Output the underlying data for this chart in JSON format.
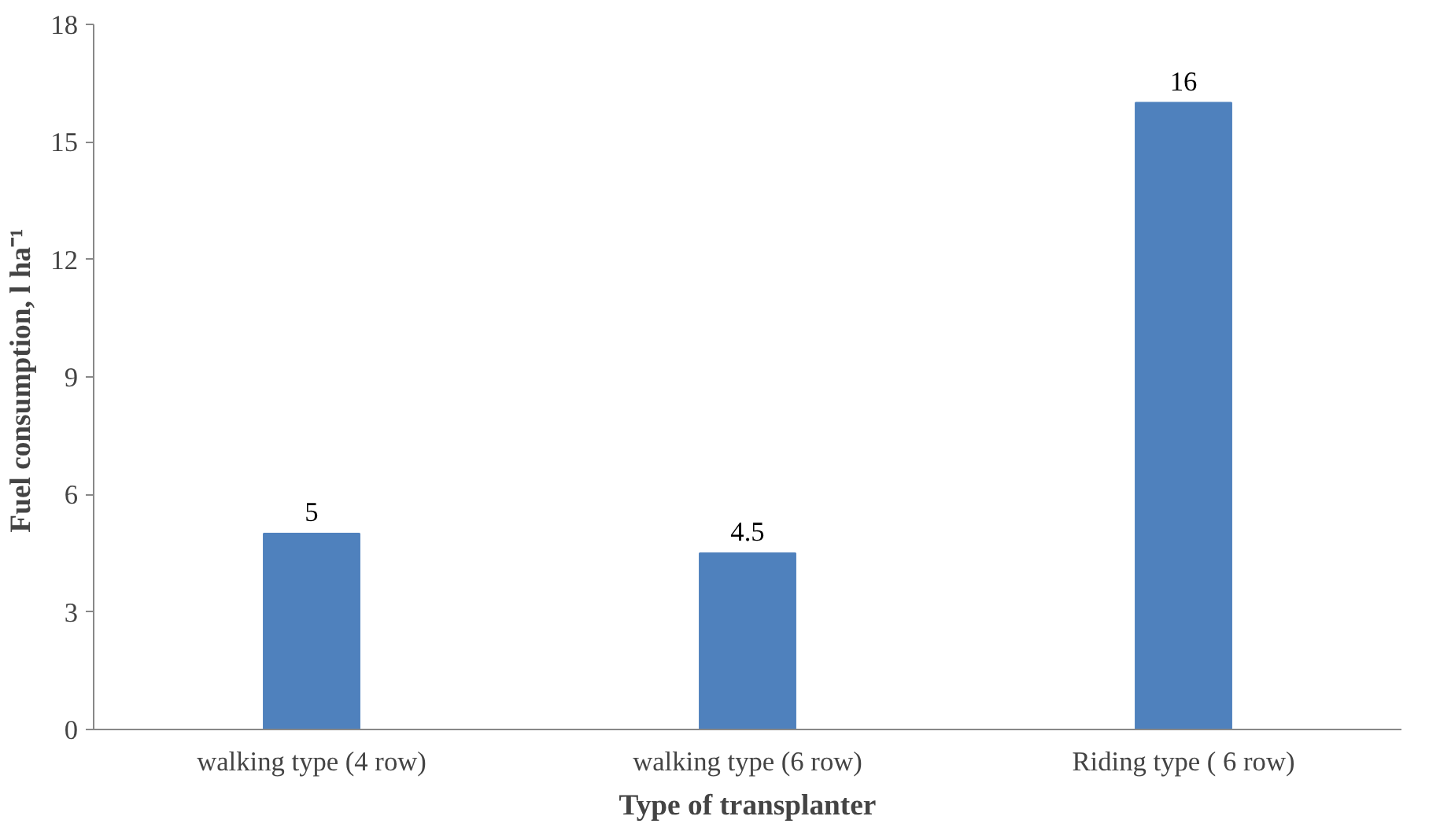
{
  "chart_data": {
    "type": "bar",
    "xlabel": "Type of transplanter",
    "ylabel": "Fuel  consumption, l ha⁻¹",
    "categories": [
      "walking type (4 row)",
      "walking type (6 row)",
      "Riding type ( 6 row)"
    ],
    "values": [
      5,
      4.5,
      16
    ],
    "color": "#4f81bd",
    "data_labels": true,
    "ylim": [
      0,
      18
    ],
    "yticks": [
      0,
      3,
      6,
      9,
      12,
      15,
      18
    ],
    "grid": false
  }
}
